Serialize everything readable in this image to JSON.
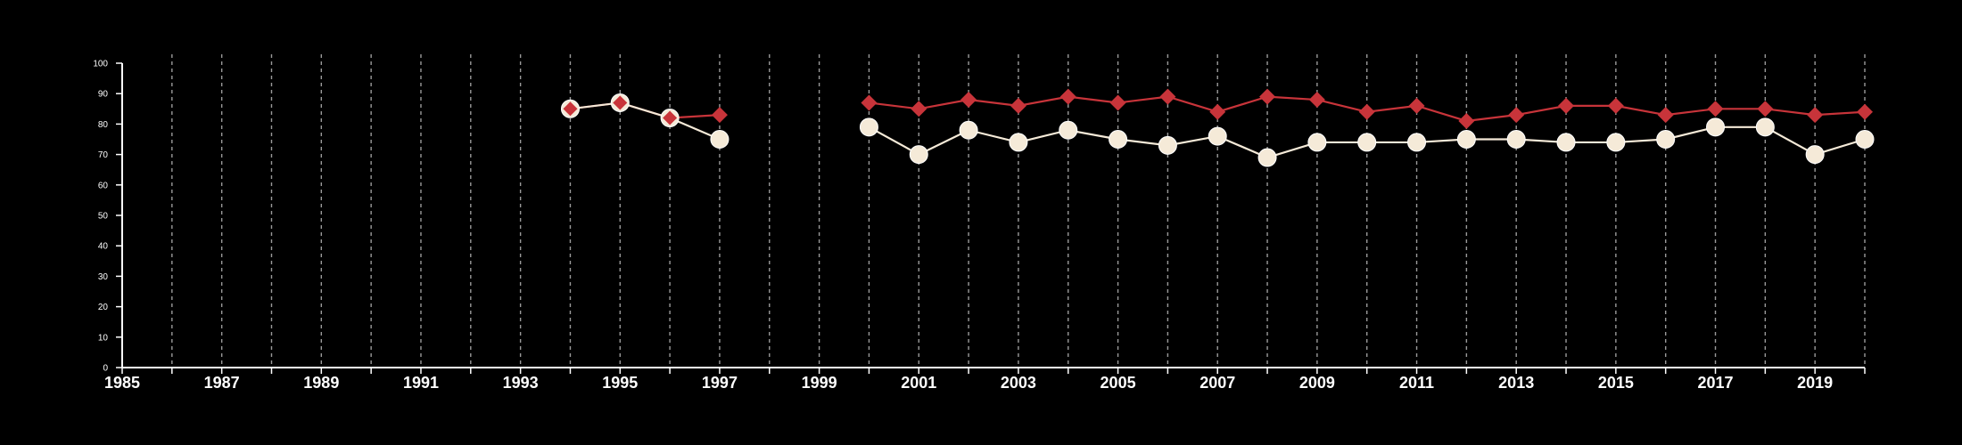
{
  "colors": {
    "background": "#000000",
    "axis": "#ffffff",
    "grid": "#9a9a9a",
    "series_red": "#c8343a",
    "series_cream": "#f5ead8"
  },
  "chart_data": {
    "type": "line",
    "title": "",
    "xlabel": "",
    "ylabel": "",
    "xlim": [
      1985,
      2020
    ],
    "ylim": [
      0,
      100
    ],
    "y_ticks": [
      0,
      10,
      20,
      30,
      40,
      50,
      60,
      70,
      80,
      90,
      100
    ],
    "x_tick_labels": [
      1985,
      1987,
      1989,
      1991,
      1993,
      1995,
      1997,
      1999,
      2001,
      2003,
      2005,
      2007,
      2009,
      2011,
      2013,
      2015,
      2017,
      2019
    ],
    "grid": "vertical dashed lines at every year",
    "legend": "none",
    "series": [
      {
        "marker": "diamond",
        "color": "#c8343a",
        "segments": [
          [
            [
              1994,
              85
            ],
            [
              1995,
              87
            ],
            [
              1996,
              82
            ],
            [
              1997,
              83
            ]
          ],
          [
            [
              2000,
              87
            ],
            [
              2001,
              85
            ],
            [
              2002,
              88
            ],
            [
              2003,
              86
            ],
            [
              2004,
              89
            ],
            [
              2005,
              87
            ],
            [
              2006,
              89
            ],
            [
              2007,
              84
            ],
            [
              2008,
              89
            ],
            [
              2009,
              88
            ],
            [
              2010,
              84
            ],
            [
              2011,
              86
            ],
            [
              2012,
              81
            ],
            [
              2013,
              83
            ],
            [
              2014,
              86
            ],
            [
              2015,
              86
            ],
            [
              2016,
              83
            ],
            [
              2017,
              85
            ],
            [
              2018,
              85
            ],
            [
              2019,
              83
            ],
            [
              2020,
              84
            ]
          ]
        ]
      },
      {
        "marker": "circle",
        "color": "#f5ead8",
        "segments": [
          [
            [
              1994,
              85
            ],
            [
              1995,
              87
            ],
            [
              1996,
              82
            ],
            [
              1997,
              75
            ]
          ],
          [
            [
              2000,
              79
            ],
            [
              2001,
              70
            ],
            [
              2002,
              78
            ],
            [
              2003,
              74
            ],
            [
              2004,
              78
            ],
            [
              2005,
              75
            ],
            [
              2006,
              73
            ],
            [
              2007,
              76
            ],
            [
              2008,
              69
            ],
            [
              2009,
              74
            ],
            [
              2010,
              74
            ],
            [
              2011,
              74
            ],
            [
              2012,
              75
            ],
            [
              2013,
              75
            ],
            [
              2014,
              74
            ],
            [
              2015,
              74
            ],
            [
              2016,
              75
            ],
            [
              2017,
              79
            ],
            [
              2018,
              79
            ],
            [
              2019,
              70
            ],
            [
              2020,
              75
            ]
          ]
        ]
      }
    ]
  }
}
